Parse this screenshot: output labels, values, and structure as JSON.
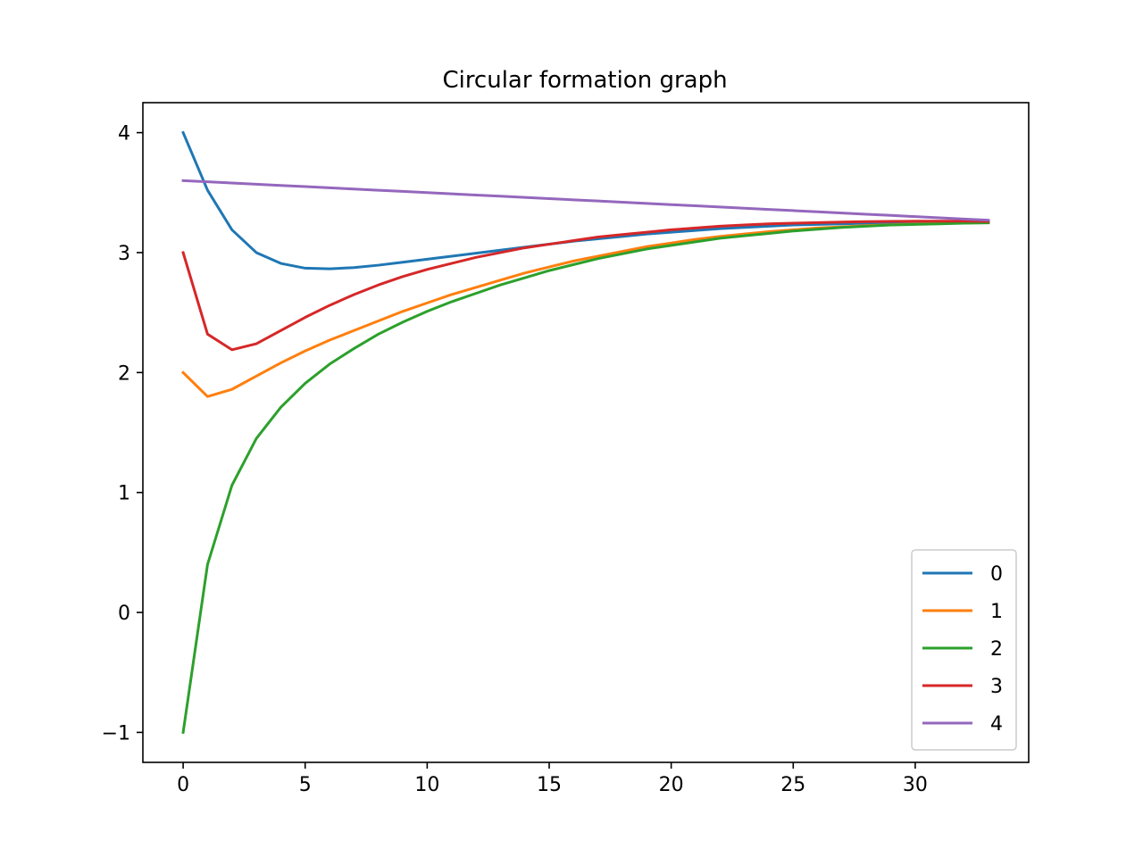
{
  "chart_data": {
    "type": "line",
    "title": "Circular formation graph",
    "xlabel": "",
    "ylabel": "",
    "xlim": [
      -1.65,
      34.65
    ],
    "ylim": [
      -1.25,
      4.25
    ],
    "x_ticks": [
      0,
      5,
      10,
      15,
      20,
      25,
      30
    ],
    "y_ticks": [
      -1,
      0,
      1,
      2,
      3,
      4
    ],
    "x_tick_labels": [
      "0",
      "5",
      "10",
      "15",
      "20",
      "25",
      "30"
    ],
    "y_tick_labels": [
      "−1",
      "0",
      "1",
      "2",
      "3",
      "4"
    ],
    "grid": false,
    "legend_position": "lower right",
    "x": [
      0,
      1,
      2,
      3,
      4,
      5,
      6,
      7,
      8,
      9,
      10,
      11,
      12,
      13,
      14,
      15,
      16,
      17,
      18,
      19,
      20,
      21,
      22,
      23,
      24,
      25,
      26,
      27,
      28,
      29,
      30,
      31,
      32,
      33
    ],
    "series": [
      {
        "name": "0",
        "color": "#1f77b4",
        "values": [
          4.0,
          3.52,
          3.19,
          3.0,
          2.91,
          2.87,
          2.865,
          2.875,
          2.895,
          2.92,
          2.945,
          2.97,
          2.995,
          3.02,
          3.045,
          3.07,
          3.095,
          3.115,
          3.135,
          3.155,
          3.17,
          3.185,
          3.2,
          3.21,
          3.22,
          3.23,
          3.235,
          3.24,
          3.245,
          3.248,
          3.25,
          3.252,
          3.253,
          3.255
        ]
      },
      {
        "name": "1",
        "color": "#ff7f0e",
        "values": [
          2.0,
          1.8,
          1.86,
          1.97,
          2.08,
          2.18,
          2.27,
          2.35,
          2.43,
          2.51,
          2.58,
          2.65,
          2.71,
          2.77,
          2.83,
          2.88,
          2.93,
          2.97,
          3.01,
          3.05,
          3.08,
          3.11,
          3.135,
          3.155,
          3.175,
          3.19,
          3.205,
          3.215,
          3.225,
          3.232,
          3.238,
          3.243,
          3.247,
          3.25
        ]
      },
      {
        "name": "2",
        "color": "#2ca02c",
        "values": [
          -1.0,
          0.4,
          1.06,
          1.45,
          1.71,
          1.91,
          2.07,
          2.2,
          2.32,
          2.42,
          2.51,
          2.59,
          2.66,
          2.73,
          2.79,
          2.85,
          2.9,
          2.95,
          2.99,
          3.03,
          3.06,
          3.09,
          3.12,
          3.14,
          3.16,
          3.18,
          3.195,
          3.21,
          3.22,
          3.23,
          3.235,
          3.24,
          3.245,
          3.248
        ]
      },
      {
        "name": "3",
        "color": "#d62728",
        "values": [
          3.0,
          2.32,
          2.19,
          2.24,
          2.35,
          2.46,
          2.56,
          2.65,
          2.73,
          2.8,
          2.86,
          2.91,
          2.96,
          3.0,
          3.04,
          3.07,
          3.1,
          3.13,
          3.15,
          3.17,
          3.19,
          3.205,
          3.22,
          3.23,
          3.24,
          3.245,
          3.25,
          3.255,
          3.258,
          3.26,
          3.262,
          3.262,
          3.262,
          3.26
        ]
      },
      {
        "name": "4",
        "color": "#9467bd",
        "values": [
          3.6,
          3.59,
          3.58,
          3.57,
          3.56,
          3.55,
          3.54,
          3.53,
          3.52,
          3.51,
          3.5,
          3.49,
          3.48,
          3.47,
          3.46,
          3.45,
          3.44,
          3.43,
          3.42,
          3.41,
          3.4,
          3.39,
          3.38,
          3.37,
          3.36,
          3.35,
          3.34,
          3.33,
          3.32,
          3.31,
          3.3,
          3.29,
          3.28,
          3.27
        ]
      }
    ]
  }
}
